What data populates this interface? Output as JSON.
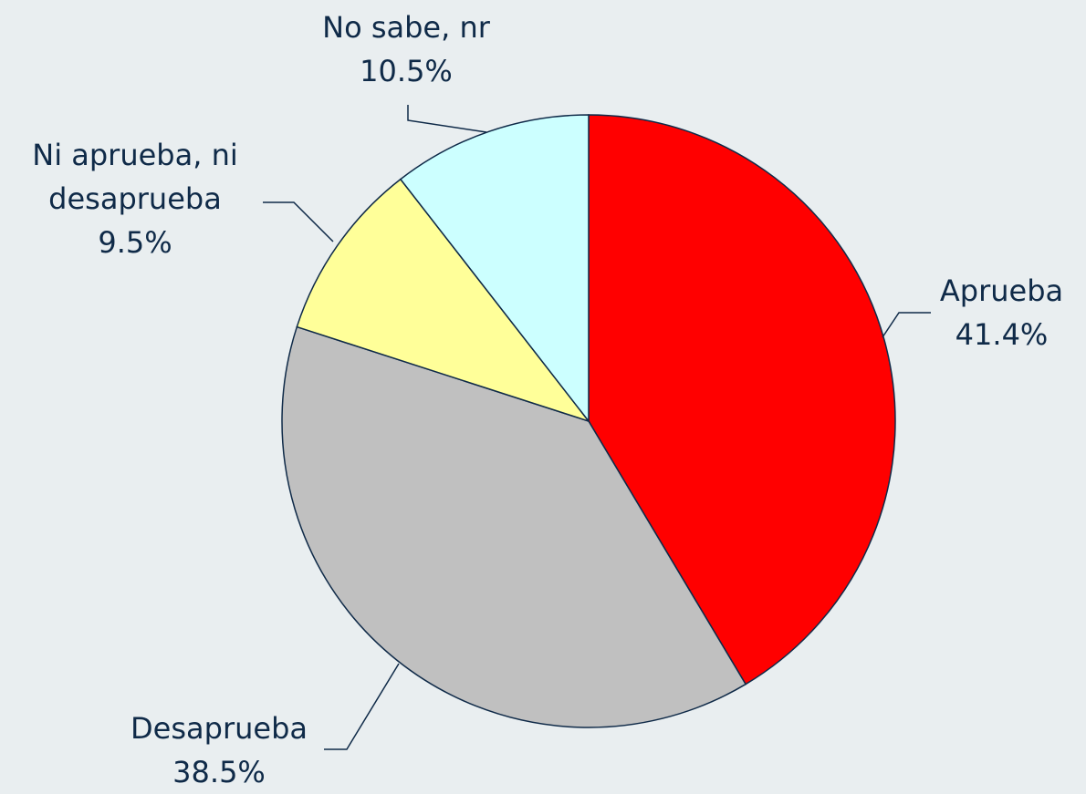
{
  "chart_data": {
    "type": "pie",
    "categories": [
      "Aprueba",
      "Desaprueba",
      "Ni aprueba, ni desaprueba",
      "No sabe, nr"
    ],
    "values": [
      41.4,
      38.5,
      9.5,
      10.5
    ],
    "value_labels": [
      "41.4%",
      "38.5%",
      "9.5%",
      "10.5%"
    ],
    "colors": [
      "#ff0000",
      "#c0c0c0",
      "#ffff99",
      "#ccffff"
    ]
  }
}
